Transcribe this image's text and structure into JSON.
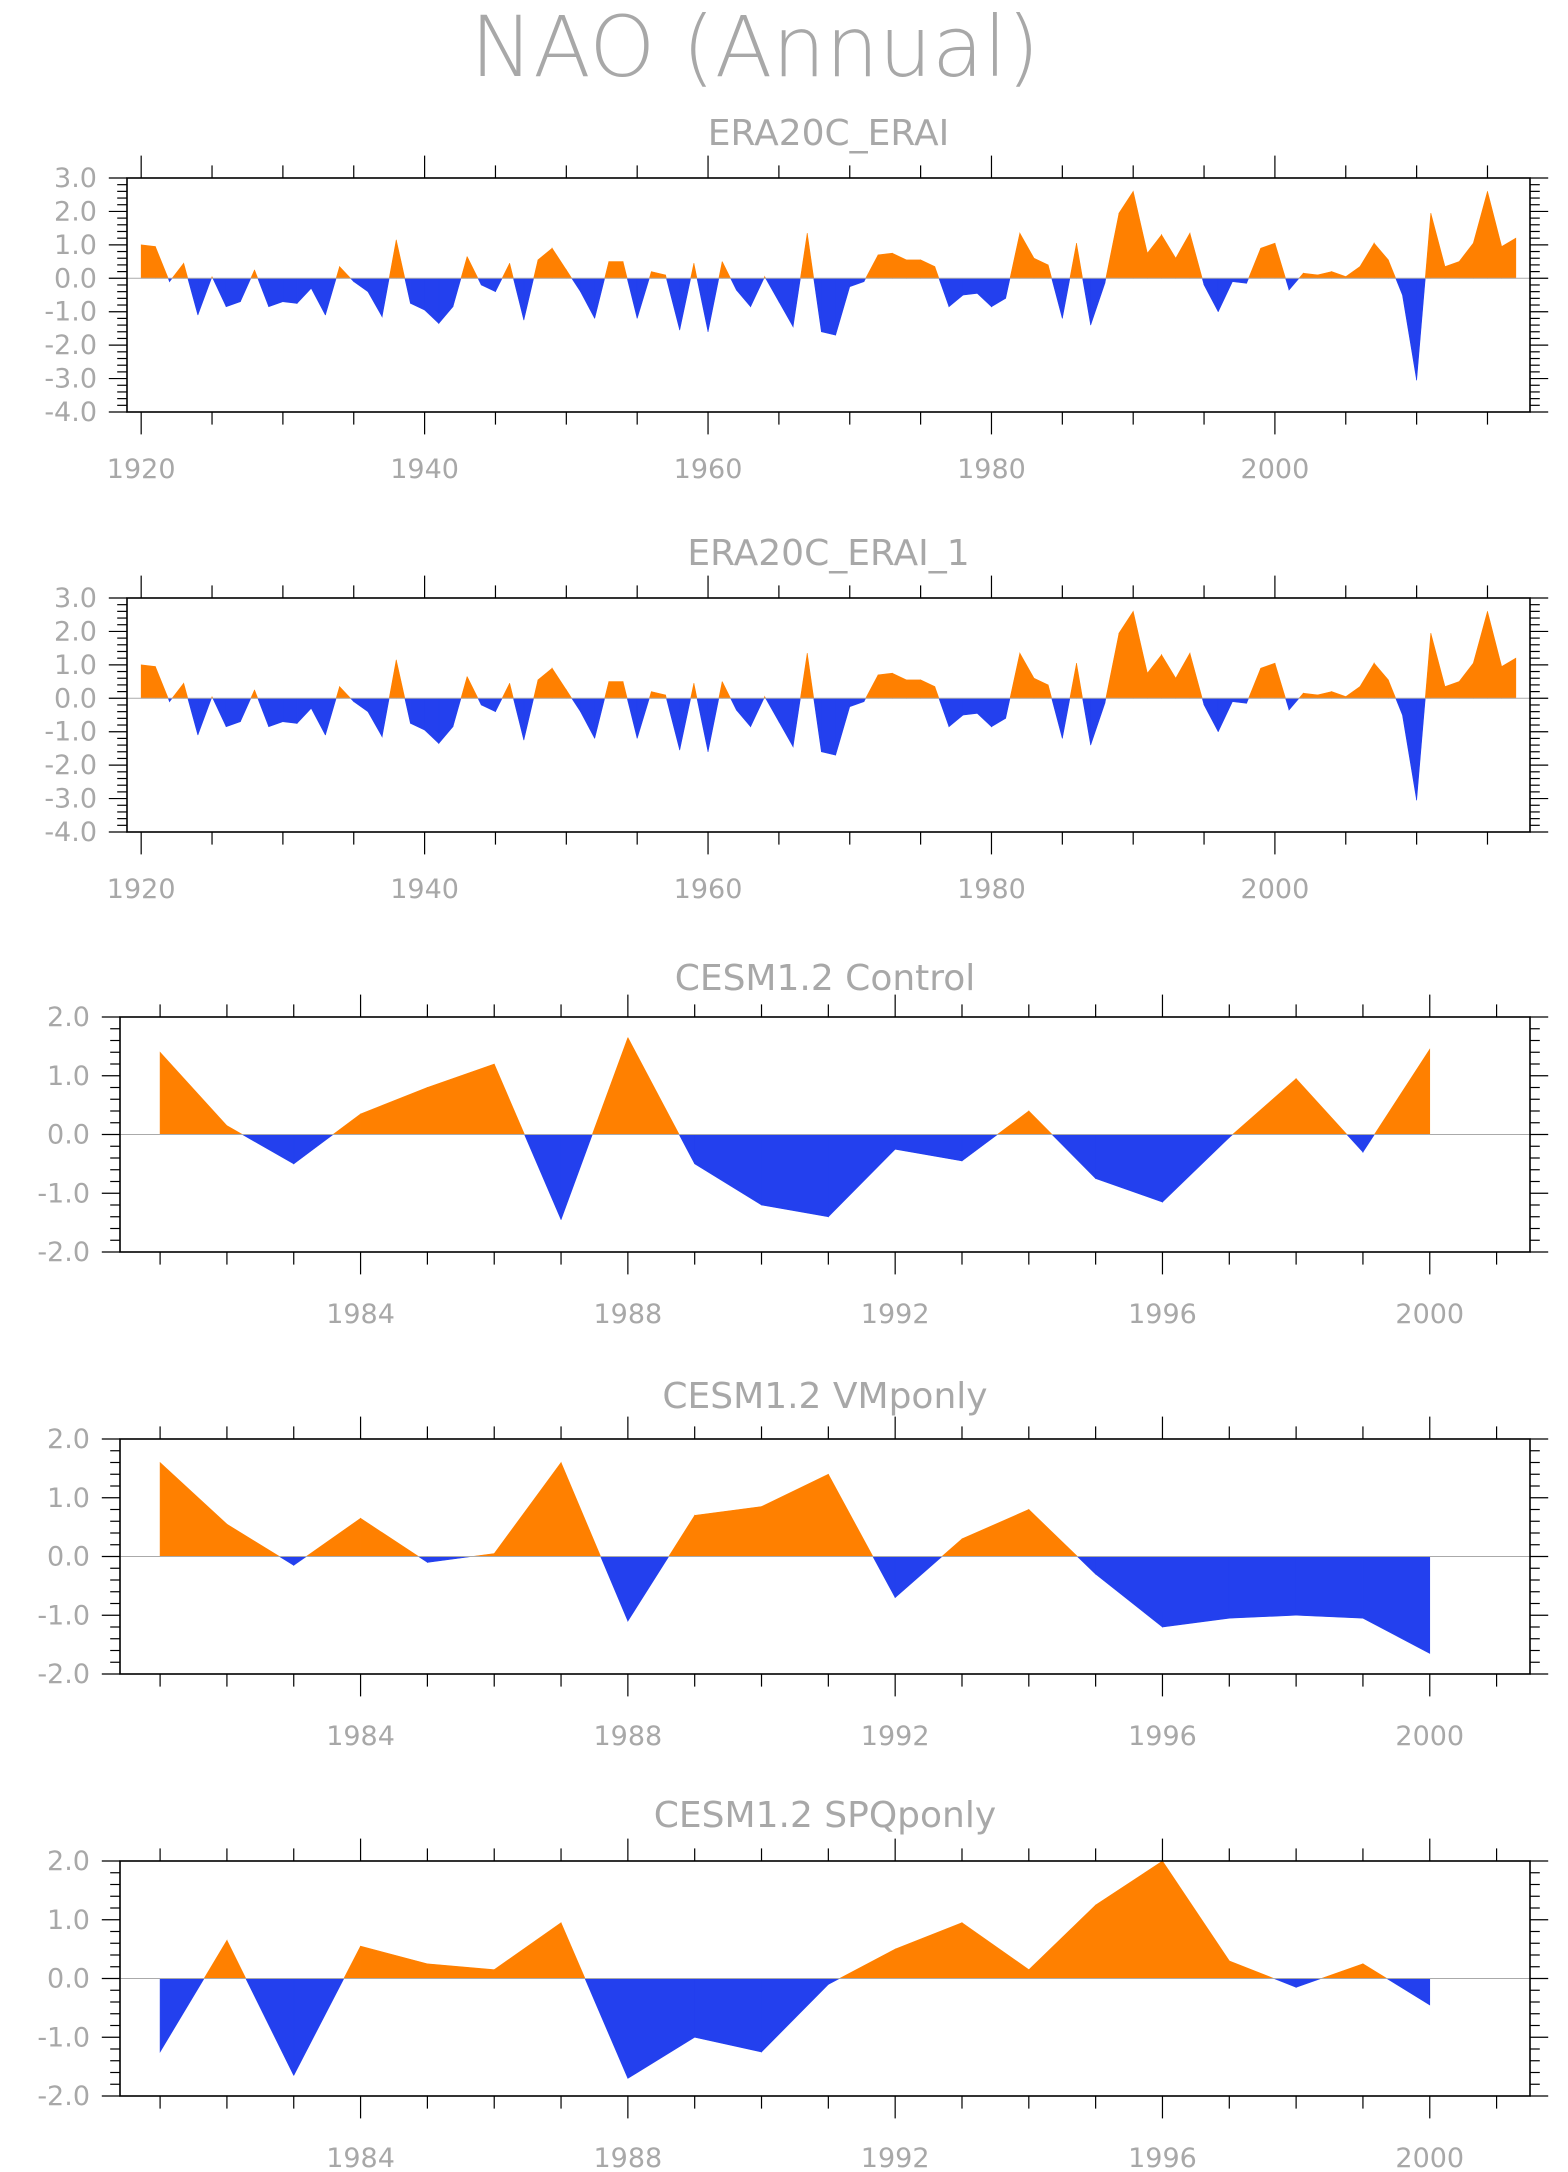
{
  "title": "NAO (Annual)",
  "colors": {
    "positive": "#ff8000",
    "negative": "#2340ee",
    "frame": "#000000",
    "text": "#a8a8a8",
    "zero_line": "#aaaaaa"
  },
  "chart_data": [
    {
      "type": "area",
      "title": "ERA20C_ERAI",
      "xlim": [
        1919,
        2018
      ],
      "ylim": [
        -4.0,
        3.0
      ],
      "xticks": [
        1920,
        1940,
        1960,
        1980,
        2000
      ],
      "yticks": [
        -4.0,
        -3.0,
        -2.0,
        -1.0,
        0.0,
        1.0,
        2.0,
        3.0
      ],
      "x": [
        1920,
        1921,
        1922,
        1923,
        1924,
        1925,
        1926,
        1927,
        1928,
        1929,
        1930,
        1931,
        1932,
        1933,
        1934,
        1935,
        1936,
        1937,
        1938,
        1939,
        1940,
        1941,
        1942,
        1943,
        1944,
        1945,
        1946,
        1947,
        1948,
        1949,
        1950,
        1951,
        1952,
        1953,
        1954,
        1955,
        1956,
        1957,
        1958,
        1959,
        1960,
        1961,
        1962,
        1963,
        1964,
        1965,
        1966,
        1967,
        1968,
        1969,
        1970,
        1971,
        1972,
        1973,
        1974,
        1975,
        1976,
        1977,
        1978,
        1979,
        1980,
        1981,
        1982,
        1983,
        1984,
        1985,
        1986,
        1987,
        1988,
        1989,
        1990,
        1991,
        1992,
        1993,
        1994,
        1995,
        1996,
        1997,
        1998,
        1999,
        2000,
        2001,
        2002,
        2003,
        2004,
        2005,
        2006,
        2007,
        2008,
        2009,
        2010,
        2011,
        2012,
        2013,
        2014,
        2015,
        2016,
        2017
      ],
      "values": [
        1.0,
        0.95,
        -0.1,
        0.45,
        -1.1,
        0.05,
        -0.85,
        -0.7,
        0.25,
        -0.85,
        -0.7,
        -0.75,
        -0.3,
        -1.1,
        0.35,
        -0.1,
        -0.4,
        -1.15,
        1.15,
        -0.75,
        -0.95,
        -1.35,
        -0.85,
        0.65,
        -0.2,
        -0.4,
        0.45,
        -1.25,
        0.55,
        0.9,
        0.25,
        -0.4,
        -1.2,
        0.5,
        0.5,
        -1.2,
        0.2,
        0.1,
        -1.55,
        0.45,
        -1.6,
        0.5,
        -0.35,
        -0.85,
        0.05,
        -0.7,
        -1.45,
        1.35,
        -1.6,
        -1.7,
        -0.25,
        -0.1,
        0.7,
        0.75,
        0.55,
        0.55,
        0.35,
        -0.85,
        -0.5,
        -0.45,
        -0.85,
        -0.6,
        1.35,
        0.6,
        0.4,
        -1.2,
        1.05,
        -1.4,
        -0.15,
        1.95,
        2.6,
        0.75,
        1.3,
        0.6,
        1.35,
        -0.2,
        -1.0,
        -0.1,
        -0.15,
        0.9,
        1.05,
        -0.35,
        0.15,
        0.1,
        0.2,
        0.05,
        0.35,
        1.05,
        0.55,
        -0.5,
        -3.05,
        1.95,
        0.35,
        0.5,
        1.05,
        2.6,
        0.95,
        1.2
      ]
    },
    {
      "type": "area",
      "title": "ERA20C_ERAI_1",
      "xlim": [
        1919,
        2018
      ],
      "ylim": [
        -4.0,
        3.0
      ],
      "xticks": [
        1920,
        1940,
        1960,
        1980,
        2000
      ],
      "yticks": [
        -4.0,
        -3.0,
        -2.0,
        -1.0,
        0.0,
        1.0,
        2.0,
        3.0
      ],
      "x": [
        1920,
        1921,
        1922,
        1923,
        1924,
        1925,
        1926,
        1927,
        1928,
        1929,
        1930,
        1931,
        1932,
        1933,
        1934,
        1935,
        1936,
        1937,
        1938,
        1939,
        1940,
        1941,
        1942,
        1943,
        1944,
        1945,
        1946,
        1947,
        1948,
        1949,
        1950,
        1951,
        1952,
        1953,
        1954,
        1955,
        1956,
        1957,
        1958,
        1959,
        1960,
        1961,
        1962,
        1963,
        1964,
        1965,
        1966,
        1967,
        1968,
        1969,
        1970,
        1971,
        1972,
        1973,
        1974,
        1975,
        1976,
        1977,
        1978,
        1979,
        1980,
        1981,
        1982,
        1983,
        1984,
        1985,
        1986,
        1987,
        1988,
        1989,
        1990,
        1991,
        1992,
        1993,
        1994,
        1995,
        1996,
        1997,
        1998,
        1999,
        2000,
        2001,
        2002,
        2003,
        2004,
        2005,
        2006,
        2007,
        2008,
        2009,
        2010,
        2011,
        2012,
        2013,
        2014,
        2015,
        2016,
        2017
      ],
      "values": [
        1.0,
        0.95,
        -0.1,
        0.45,
        -1.1,
        0.05,
        -0.85,
        -0.7,
        0.25,
        -0.85,
        -0.7,
        -0.75,
        -0.3,
        -1.1,
        0.35,
        -0.1,
        -0.4,
        -1.15,
        1.15,
        -0.75,
        -0.95,
        -1.35,
        -0.85,
        0.65,
        -0.2,
        -0.4,
        0.45,
        -1.25,
        0.55,
        0.9,
        0.25,
        -0.4,
        -1.2,
        0.5,
        0.5,
        -1.2,
        0.2,
        0.1,
        -1.55,
        0.45,
        -1.6,
        0.5,
        -0.35,
        -0.85,
        0.05,
        -0.7,
        -1.45,
        1.35,
        -1.6,
        -1.7,
        -0.25,
        -0.1,
        0.7,
        0.75,
        0.55,
        0.55,
        0.35,
        -0.85,
        -0.5,
        -0.45,
        -0.85,
        -0.6,
        1.35,
        0.6,
        0.4,
        -1.2,
        1.05,
        -1.4,
        -0.15,
        1.95,
        2.6,
        0.75,
        1.3,
        0.6,
        1.35,
        -0.2,
        -1.0,
        -0.1,
        -0.15,
        0.9,
        1.05,
        -0.35,
        0.15,
        0.1,
        0.2,
        0.05,
        0.35,
        1.05,
        0.55,
        -0.5,
        -3.05,
        1.95,
        0.35,
        0.5,
        1.05,
        2.6,
        0.95,
        1.2
      ]
    },
    {
      "type": "area",
      "title": "CESM1.2 Control",
      "xlim": [
        1980.4,
        2001.5
      ],
      "ylim": [
        -2.0,
        2.0
      ],
      "xticks": [
        1984,
        1988,
        1992,
        1996,
        2000
      ],
      "yticks": [
        -2.0,
        -1.0,
        0.0,
        1.0,
        2.0
      ],
      "x": [
        1981,
        1982,
        1983,
        1984,
        1985,
        1986,
        1987,
        1988,
        1989,
        1990,
        1991,
        1992,
        1993,
        1994,
        1995,
        1996,
        1997,
        1998,
        1999,
        2000
      ],
      "values": [
        1.4,
        0.15,
        -0.5,
        0.35,
        0.8,
        1.2,
        -1.45,
        1.65,
        -0.5,
        -1.2,
        -1.4,
        -0.25,
        -0.45,
        0.4,
        -0.75,
        -1.15,
        -0.05,
        0.95,
        -0.3,
        1.45
      ]
    },
    {
      "type": "area",
      "title": "CESM1.2 VMponly",
      "xlim": [
        1980.4,
        2001.5
      ],
      "ylim": [
        -2.0,
        2.0
      ],
      "xticks": [
        1984,
        1988,
        1992,
        1996,
        2000
      ],
      "yticks": [
        -2.0,
        -1.0,
        0.0,
        1.0,
        2.0
      ],
      "x": [
        1981,
        1982,
        1983,
        1984,
        1985,
        1986,
        1987,
        1988,
        1989,
        1990,
        1991,
        1992,
        1993,
        1994,
        1995,
        1996,
        1997,
        1998,
        1999,
        2000
      ],
      "values": [
        1.6,
        0.55,
        -0.15,
        0.65,
        -0.1,
        0.05,
        1.6,
        -1.1,
        0.7,
        0.85,
        1.4,
        -0.7,
        0.3,
        0.8,
        -0.3,
        -1.2,
        -1.05,
        -1.0,
        -1.05,
        -1.65
      ]
    },
    {
      "type": "area",
      "title": "CESM1.2 SPQponly",
      "xlim": [
        1980.4,
        2001.5
      ],
      "ylim": [
        -2.0,
        2.0
      ],
      "xticks": [
        1984,
        1988,
        1992,
        1996,
        2000
      ],
      "yticks": [
        -2.0,
        -1.0,
        0.0,
        1.0,
        2.0
      ],
      "x": [
        1981,
        1982,
        1983,
        1984,
        1985,
        1986,
        1987,
        1988,
        1989,
        1990,
        1991,
        1992,
        1993,
        1994,
        1995,
        1996,
        1997,
        1998,
        1999,
        2000
      ],
      "values": [
        -1.25,
        0.65,
        -1.65,
        0.55,
        0.25,
        0.15,
        0.95,
        -1.7,
        -1.0,
        -1.25,
        -0.1,
        0.5,
        0.95,
        0.15,
        1.25,
        2.0,
        0.3,
        -0.15,
        0.25,
        -0.45
      ]
    }
  ]
}
